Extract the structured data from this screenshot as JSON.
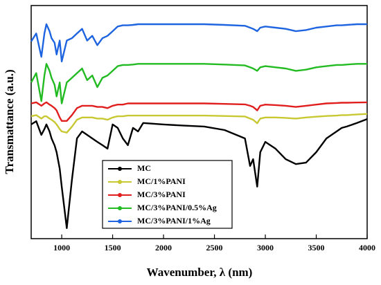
{
  "chart_data": {
    "type": "line",
    "x_label": "Wavenumber, λ (nm)",
    "y_label": "Transmattance (a.u.)",
    "xlim": [
      700,
      4000
    ],
    "xticks": [
      1000,
      1500,
      2000,
      2500,
      3000,
      3500,
      4000
    ],
    "ylim": [
      0,
      100
    ],
    "legend": "lower-left",
    "x": [
      700,
      750,
      800,
      830,
      850,
      880,
      900,
      930,
      950,
      980,
      1000,
      1050,
      1100,
      1150,
      1200,
      1250,
      1300,
      1350,
      1400,
      1450,
      1500,
      1550,
      1600,
      1650,
      1700,
      1750,
      1800,
      2000,
      2200,
      2400,
      2600,
      2800,
      2850,
      2880,
      2920,
      2950,
      3000,
      3100,
      3200,
      3300,
      3400,
      3500,
      3600,
      3700,
      3750,
      3800,
      3900,
      4000
    ],
    "series": [
      {
        "name": "MC",
        "color": "#000000",
        "values": [
          49,
          50.4,
          44.5,
          47,
          49,
          46,
          43,
          40,
          37.1,
          30,
          22.3,
          4.5,
          25.2,
          43,
          46,
          44.5,
          43,
          41.5,
          40.1,
          38.6,
          49,
          47.5,
          43,
          40.1,
          47.5,
          46,
          49.6,
          49,
          48.5,
          48.1,
          46.6,
          43,
          31.2,
          34.1,
          22.3,
          37.1,
          41.5,
          38.6,
          34.1,
          32,
          32.6,
          37.1,
          43,
          46,
          47.5,
          48.1,
          49.6,
          51.3
        ]
      },
      {
        "name": "MC/1%PANI",
        "color": "#c8c832",
        "values": [
          52.5,
          53,
          51.5,
          52.5,
          52.5,
          51.5,
          51,
          50,
          49,
          47,
          46,
          45.5,
          48,
          51,
          52,
          52,
          52,
          51.5,
          51.5,
          51,
          52,
          52.5,
          52.5,
          52.8,
          52.8,
          52.8,
          52.8,
          52.8,
          52.8,
          52.8,
          52.6,
          52.4,
          51.5,
          51,
          49.5,
          51.5,
          52,
          52,
          51.8,
          51.5,
          52,
          52.3,
          52.6,
          52.8,
          53,
          53,
          53.3,
          53.5
        ]
      },
      {
        "name": "MC/3%PANI",
        "color": "#e01e1e",
        "values": [
          58,
          58.5,
          57,
          58,
          58.5,
          57.5,
          57,
          56,
          55,
          52,
          50.5,
          50.5,
          53,
          56,
          57,
          57,
          57,
          56.5,
          56.5,
          56,
          57,
          57.5,
          57.5,
          58,
          58,
          58,
          58,
          58,
          58,
          58,
          57.8,
          57.6,
          57,
          56.5,
          55,
          57,
          57.5,
          57.3,
          57,
          56.5,
          57,
          57.5,
          58,
          58.2,
          58.3,
          58.3,
          58.4,
          58.5
        ]
      },
      {
        "name": "MC/3%PANI/0.5%Ag",
        "color": "#22bb22",
        "values": [
          67,
          71,
          59,
          70,
          75,
          72,
          69,
          66,
          61,
          67,
          58,
          67,
          69,
          71,
          73,
          68,
          70,
          65,
          69,
          70,
          72,
          74,
          74.5,
          74.5,
          74.7,
          75,
          75,
          75,
          75,
          75,
          74.7,
          74.3,
          73.5,
          73,
          72,
          73.5,
          74,
          73.5,
          73,
          72,
          72.5,
          73.5,
          74,
          74.5,
          74.5,
          74.7,
          75,
          75
        ]
      },
      {
        "name": "MC/3%PANI/1%Ag",
        "color": "#1e64e0",
        "values": [
          84.6,
          88,
          78,
          88,
          92,
          89,
          86,
          84,
          79,
          85,
          76,
          85,
          86,
          88,
          90,
          85,
          87,
          83,
          86,
          87,
          89,
          91,
          91.5,
          91.5,
          91.7,
          92,
          92,
          92,
          92,
          92,
          91.7,
          91.3,
          90.5,
          90,
          89,
          90.5,
          91,
          90.5,
          90,
          89,
          89.5,
          90.5,
          91,
          91.5,
          91.5,
          91.7,
          92,
          92
        ]
      }
    ]
  }
}
